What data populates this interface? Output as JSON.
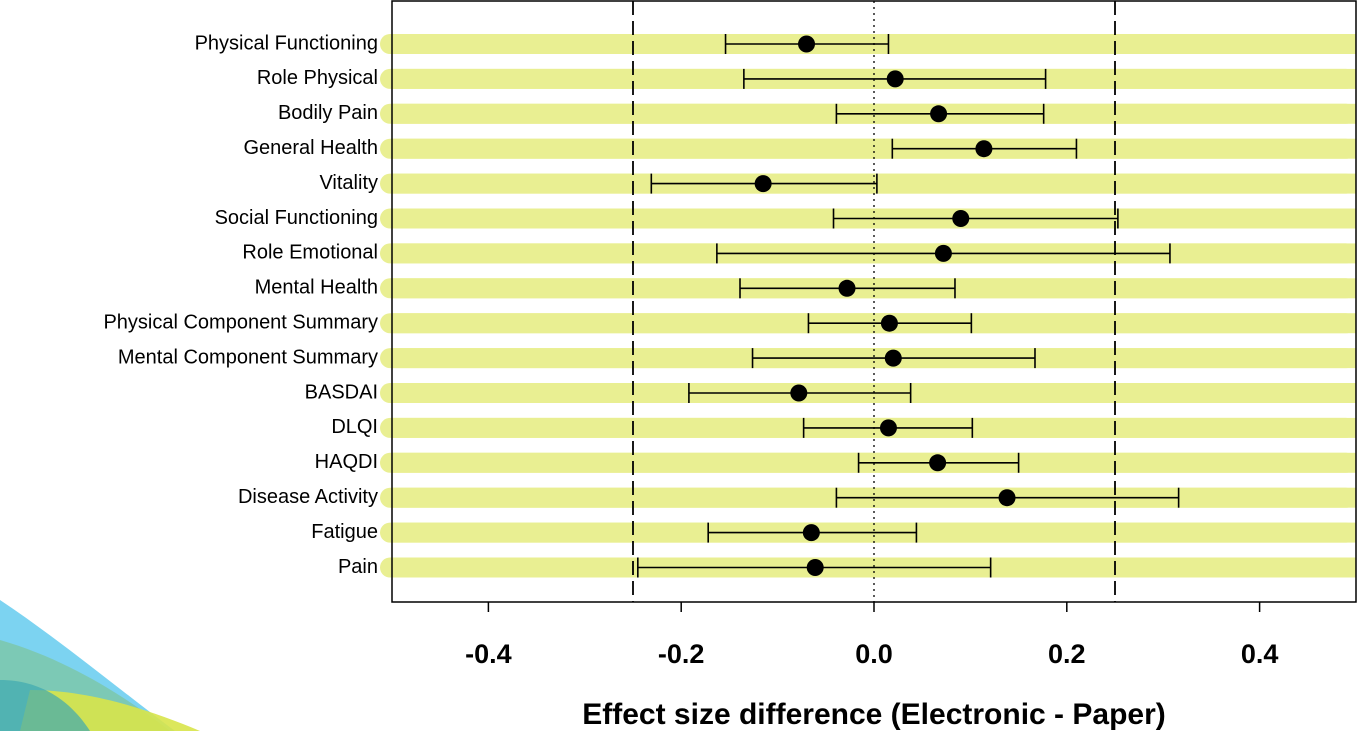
{
  "chart_data": {
    "type": "forest",
    "x_label": "Effect size difference (Electronic - Paper)",
    "categories": [
      "Physical Functioning",
      "Role Physical",
      "Bodily Pain",
      "General Health",
      "Vitality",
      "Social Functioning",
      "Role Emotional",
      "Mental Health",
      "Physical Component Summary",
      "Mental Component Summary",
      "BASDAI",
      "DLQI",
      "HAQDI",
      "Disease Activity",
      "Fatigue",
      "Pain"
    ],
    "values": [
      -0.07,
      0.022,
      0.067,
      0.114,
      -0.115,
      0.09,
      0.072,
      -0.028,
      0.016,
      0.02,
      -0.078,
      0.015,
      0.066,
      0.138,
      -0.065,
      -0.061
    ],
    "lower": [
      -0.154,
      -0.135,
      -0.039,
      0.019,
      -0.231,
      -0.042,
      -0.163,
      -0.139,
      -0.068,
      -0.126,
      -0.192,
      -0.073,
      -0.016,
      -0.039,
      -0.172,
      -0.245
    ],
    "upper": [
      0.015,
      0.178,
      0.176,
      0.21,
      0.003,
      0.253,
      0.307,
      0.084,
      0.101,
      0.167,
      0.038,
      0.102,
      0.15,
      0.316,
      0.044,
      0.121
    ],
    "xlim": [
      -0.5,
      0.5
    ],
    "xticks": [
      -0.4,
      -0.2,
      {
        "value": 0,
        "label": "0.0"
      },
      0.2,
      0.4
    ],
    "reference_lines": [
      {
        "value": -0.25,
        "style": "dashed"
      },
      {
        "value": 0,
        "style": "dotted"
      },
      {
        "value": 0.25,
        "style": "dashed"
      }
    ],
    "band_color": "#e9ef92",
    "point_color": "#000000"
  }
}
